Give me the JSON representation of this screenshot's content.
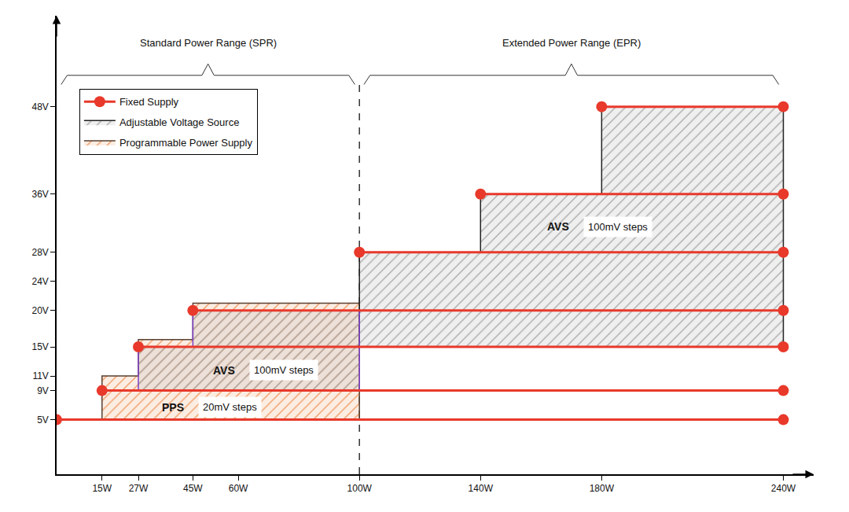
{
  "chart_data": {
    "type": "range_map",
    "xlim": [
      0,
      250
    ],
    "ylim": [
      -2.5,
      60.5
    ],
    "xticks": [
      {
        "value": 15,
        "label": "15W"
      },
      {
        "value": 27,
        "label": "27W"
      },
      {
        "value": 45,
        "label": "45W"
      },
      {
        "value": 60,
        "label": "60W"
      },
      {
        "value": 100,
        "label": "100W"
      },
      {
        "value": 140,
        "label": "140W"
      },
      {
        "value": 180,
        "label": "180W"
      },
      {
        "value": 240,
        "label": "240W"
      }
    ],
    "yticks": [
      {
        "value": 5,
        "label": "5V"
      },
      {
        "value": 9,
        "label": "9V"
      },
      {
        "value": 11,
        "label": "11V"
      },
      {
        "value": 15,
        "label": "15V"
      },
      {
        "value": 20,
        "label": "20V"
      },
      {
        "value": 24,
        "label": "24V"
      },
      {
        "value": 28,
        "label": "28V"
      },
      {
        "value": 36,
        "label": "36V"
      },
      {
        "value": 48,
        "label": "48V"
      }
    ],
    "grid": false,
    "legend": "top left",
    "ranges": [
      {
        "label": "Standard Power Range (SPR)",
        "x": [
          0,
          100
        ]
      },
      {
        "label": "Extended Power Range (EPR)",
        "x": [
          100,
          240
        ]
      }
    ],
    "series": [
      {
        "name": "Fixed Supply",
        "type": "line",
        "marker": "circle",
        "color": "#e8392b",
        "segments": [
          {
            "x": [
              0,
              240
            ],
            "y": 5
          },
          {
            "x": [
              15,
              240
            ],
            "y": 9
          },
          {
            "x": [
              27,
              240
            ],
            "y": 15
          },
          {
            "x": [
              45,
              240
            ],
            "y": 20
          },
          {
            "x": [
              100,
              240
            ],
            "y": 28
          },
          {
            "x": [
              140,
              240
            ],
            "y": 36
          },
          {
            "x": [
              180,
              240
            ],
            "y": 48
          }
        ]
      },
      {
        "name": "Adjustable Voltage Source",
        "type": "area",
        "color": "#a9a9a9",
        "regions": [
          {
            "x": [
              100,
              140,
              180,
              240
            ],
            "top": [
              28,
              36,
              48
            ],
            "bottom": [
              15,
              15,
              15
            ],
            "color": "#222222"
          },
          {
            "x": [
              27,
              45,
              100
            ],
            "top": [
              15,
              20
            ],
            "bottom": [
              9,
              9
            ],
            "color": "#7d3fc7"
          }
        ],
        "labels": [
          {
            "text": "AVS",
            "detail": "100mV steps",
            "x": 55.3,
            "y": 11.8
          },
          {
            "text": "AVS",
            "detail": "100mV steps",
            "x": 165.6,
            "y": 31.5
          }
        ]
      },
      {
        "name": "Programmable Power Supply",
        "type": "area",
        "color": "#ef9a63",
        "regions": [
          {
            "x": [
              15,
              27,
              45,
              100
            ],
            "top": [
              11,
              16,
              21
            ],
            "bottom": [
              5,
              5,
              5
            ],
            "color": "#5a4030"
          }
        ],
        "labels": [
          {
            "text": "PPS",
            "detail": "20mV steps",
            "x": 38.4,
            "y": 6.7
          }
        ]
      }
    ]
  }
}
